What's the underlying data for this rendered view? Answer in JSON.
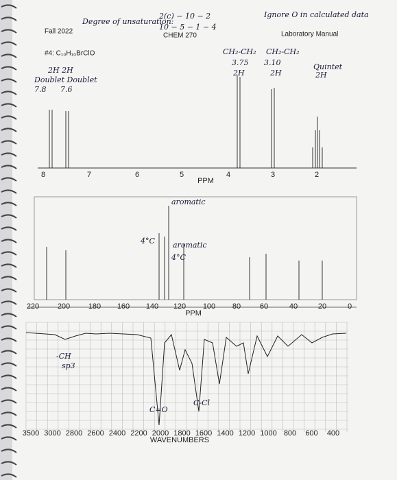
{
  "header": {
    "course": "Fall 2022",
    "center": "CHEM 270",
    "manual": "Laboratory Manual",
    "compound": "#4: C₁₀H₁₀BrClO"
  },
  "notes": {
    "unsaturation": "Degree of unsaturation:",
    "formula_1": "2(c) − 10 − 2",
    "formula_2": "10 − 5 − 1 − 4",
    "ignore": "Ignore O in calculated data"
  },
  "h_nmr": {
    "axis_label": "PPM",
    "ticks": [
      "8",
      "7",
      "6",
      "5",
      "4",
      "3",
      "2"
    ],
    "annotations": [
      "2H 2H",
      "Doublet Doublet",
      "7.8",
      "7.6",
      "CH₂-CH₂",
      "3.75",
      "CH₂-CH₂",
      "3.10",
      "2H",
      "2H",
      "Quintet",
      "2H"
    ]
  },
  "c_nmr": {
    "axis_label": "PPM",
    "ticks": [
      "220",
      "200",
      "180",
      "160",
      "140",
      "120",
      "100",
      "80",
      "60",
      "40",
      "20",
      "0"
    ],
    "annotations": [
      "aromatic",
      "4°C",
      "aromatic",
      "4°C"
    ]
  },
  "ir": {
    "axis_label": "WAVENUMBERS",
    "ticks": [
      "3500",
      "3000",
      "2800",
      "2600",
      "2400",
      "2200",
      "2000",
      "1800",
      "1600",
      "1400",
      "1200",
      "1000",
      "800",
      "600",
      "400"
    ],
    "annotations": [
      "-CH",
      "sp3",
      "C=O",
      "C-Cl"
    ]
  }
}
